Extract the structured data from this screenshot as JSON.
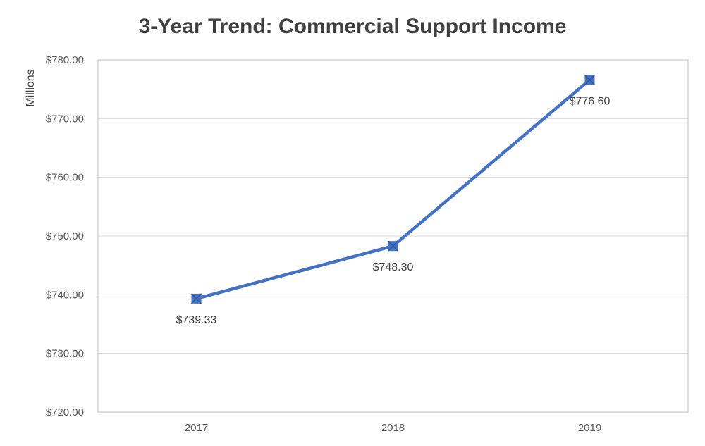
{
  "chart_data": {
    "type": "line",
    "title": "3-Year Trend: Commercial Support Income",
    "xlabel": "",
    "ylabel": "Millions",
    "categories": [
      "2017",
      "2018",
      "2019"
    ],
    "series": [
      {
        "values": [
          739.33,
          748.3,
          776.6
        ]
      }
    ],
    "data_labels": [
      "$739.33",
      "$748.30",
      "$776.60"
    ],
    "ylim": [
      720,
      780
    ],
    "yticks": [
      720,
      730,
      740,
      750,
      760,
      770,
      780
    ],
    "ytick_labels": [
      "$720.00",
      "$730.00",
      "$740.00",
      "$750.00",
      "$760.00",
      "$770.00",
      "$780.00"
    ],
    "grid": true,
    "legend": "none",
    "colors": {
      "line": "#4472c4",
      "marker": "#4472c4"
    }
  }
}
